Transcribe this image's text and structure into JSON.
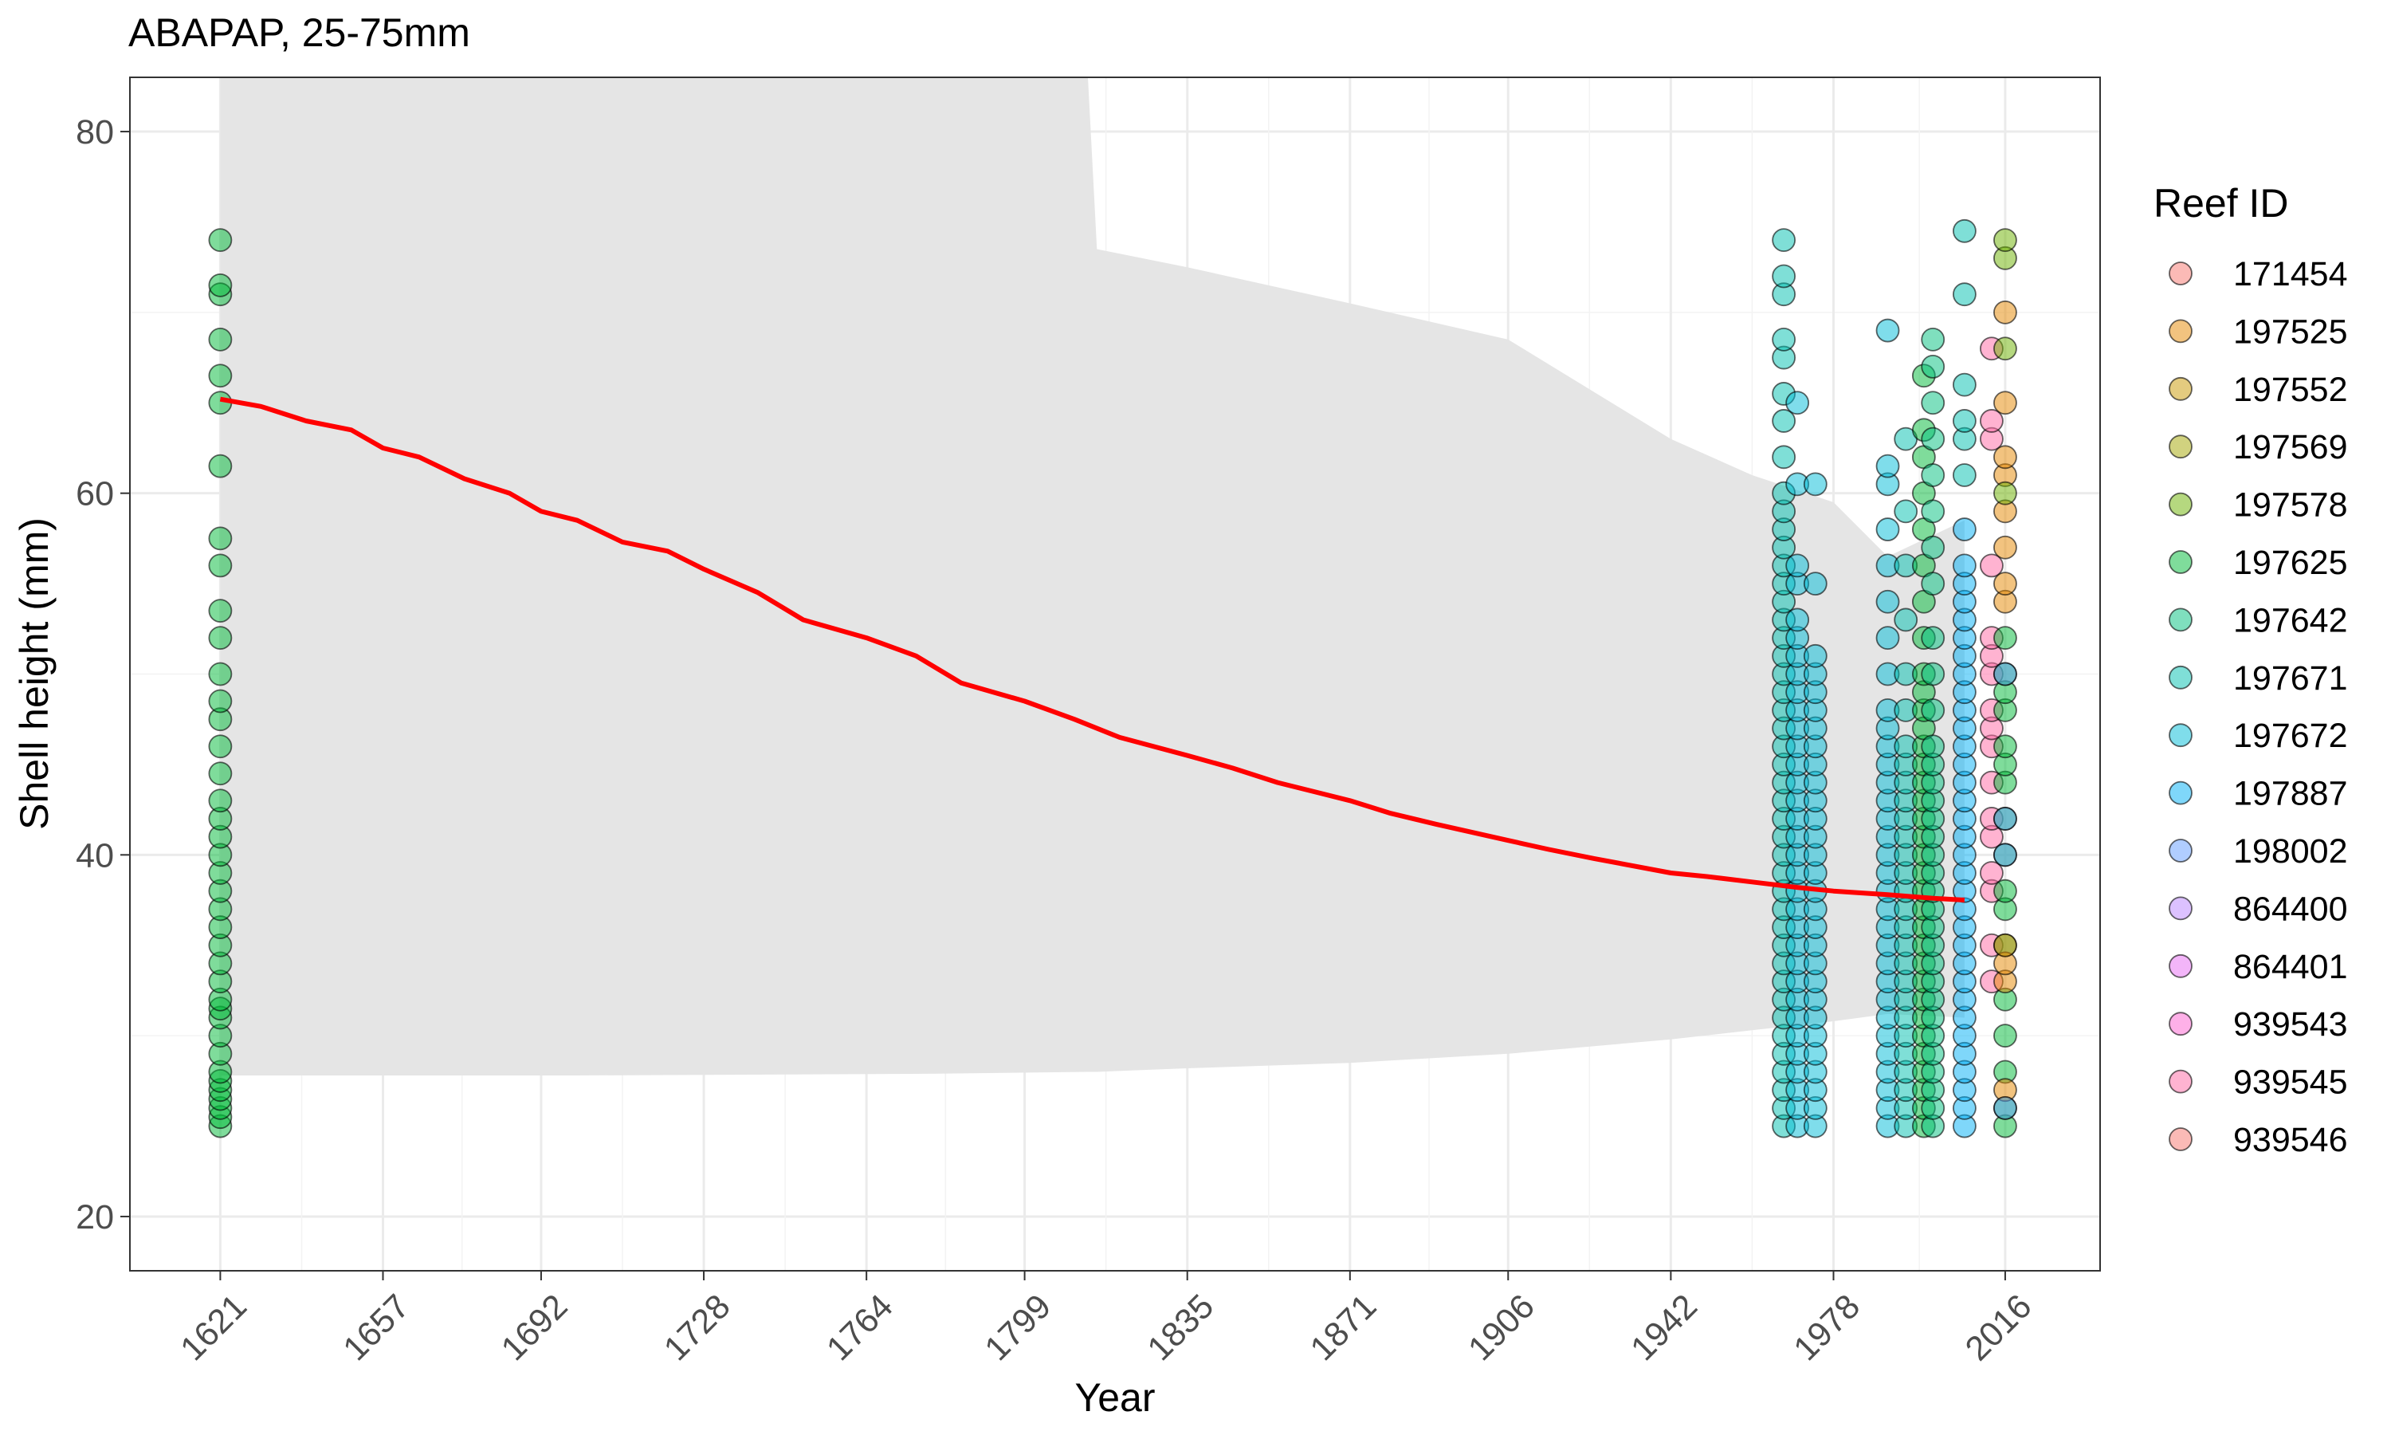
{
  "chart_data": {
    "type": "scatter",
    "title": "ABAPAP, 25-75mm",
    "xlabel": "Year",
    "ylabel": "Shell height (mm)",
    "xlim": [
      1601,
      2037
    ],
    "ylim": [
      17,
      83
    ],
    "x_ticks": [
      1621,
      1657,
      1692,
      1728,
      1764,
      1799,
      1835,
      1871,
      1906,
      1942,
      1978,
      2016
    ],
    "y_ticks": [
      20,
      40,
      60,
      80
    ],
    "grid": true,
    "legend_position": "right",
    "legend_title": "Reef ID",
    "reefs": [
      {
        "id": "171454",
        "color": "#F8766D"
      },
      {
        "id": "197525",
        "color": "#E58700"
      },
      {
        "id": "197552",
        "color": "#C99800"
      },
      {
        "id": "197569",
        "color": "#A3A500"
      },
      {
        "id": "197578",
        "color": "#6BB100"
      },
      {
        "id": "197625",
        "color": "#00BA38"
      },
      {
        "id": "197642",
        "color": "#00BF7D"
      },
      {
        "id": "197671",
        "color": "#00C0AF"
      },
      {
        "id": "197672",
        "color": "#00BCD8"
      },
      {
        "id": "197887",
        "color": "#00B0F6"
      },
      {
        "id": "198002",
        "color": "#619CFF"
      },
      {
        "id": "864400",
        "color": "#B983FF"
      },
      {
        "id": "864401",
        "color": "#E76BF3"
      },
      {
        "id": "939543",
        "color": "#FD61D1"
      },
      {
        "id": "939545",
        "color": "#FF67A4"
      },
      {
        "id": "939546",
        "color": "#F8766D"
      }
    ],
    "trend_line": {
      "color": "#ff0000",
      "x": [
        1621,
        1630,
        1640,
        1650,
        1657,
        1665,
        1675,
        1685,
        1692,
        1700,
        1710,
        1720,
        1728,
        1740,
        1750,
        1764,
        1775,
        1785,
        1799,
        1810,
        1820,
        1835,
        1845,
        1855,
        1871,
        1880,
        1890,
        1906,
        1915,
        1925,
        1942,
        1950,
        1960,
        1970,
        1978,
        1990,
        2000,
        2007
      ],
      "y": [
        65.2,
        64.8,
        64.0,
        63.5,
        62.5,
        62.0,
        60.8,
        60.0,
        59.0,
        58.5,
        57.3,
        56.8,
        55.8,
        54.5,
        53.0,
        52.0,
        51.0,
        49.5,
        48.5,
        47.5,
        46.5,
        45.5,
        44.8,
        44.0,
        43.0,
        42.3,
        41.7,
        40.8,
        40.3,
        39.8,
        39.0,
        38.8,
        38.5,
        38.2,
        38.0,
        37.8,
        37.6,
        37.5
      ]
    },
    "confidence_band": {
      "color": "#e5e5e5",
      "x": [
        1621,
        1700,
        1780,
        1813,
        1815,
        1835,
        1871,
        1906,
        1942,
        1960,
        1978,
        1990,
        2007
      ],
      "upper": [
        83,
        83,
        83,
        83,
        73.5,
        72.5,
        70.5,
        68.5,
        63.0,
        61.0,
        59.5,
        56.5,
        58.5
      ],
      "lower": [
        27.8,
        27.8,
        27.9,
        28.0,
        28.0,
        28.2,
        28.5,
        29.0,
        29.8,
        30.3,
        30.8,
        31.2,
        31.0
      ]
    },
    "point_columns": [
      {
        "x": 1621,
        "reef": "197625",
        "y": [
          25,
          25.5,
          26,
          26.5,
          27,
          27.5,
          28,
          29,
          30,
          31,
          31.5,
          32,
          33,
          34,
          35,
          36,
          37,
          38,
          39,
          40,
          41,
          42,
          43,
          44.5,
          46,
          47.5,
          48.5,
          50,
          52,
          53.5,
          56,
          57.5,
          61.5,
          65,
          66.5,
          68.5,
          71,
          71.5,
          74
        ]
      },
      {
        "x": 1967,
        "reef": "197671",
        "y": [
          25,
          26,
          27,
          28,
          29,
          30,
          31,
          32,
          33,
          34,
          35,
          36,
          37,
          38,
          39,
          40,
          41,
          42,
          43,
          44,
          45,
          46,
          47,
          48,
          49,
          50,
          51,
          52,
          53,
          54,
          55,
          56,
          57,
          58,
          59,
          60,
          62,
          64,
          65.5,
          67.5,
          68.5,
          71,
          72,
          74
        ]
      },
      {
        "x": 1970,
        "reef": "197672",
        "y": [
          25,
          26,
          27,
          28,
          29,
          30,
          31,
          32,
          33,
          34,
          35,
          36,
          37,
          38,
          39,
          40,
          41,
          42,
          43,
          44,
          45,
          46,
          47,
          48,
          49,
          50,
          51,
          52,
          53,
          55,
          56,
          60.5,
          65
        ]
      },
      {
        "x": 1974,
        "reef": "197672",
        "y": [
          25,
          26,
          27,
          28,
          29,
          30,
          31,
          32,
          33,
          34,
          35,
          36,
          37,
          38,
          39,
          40,
          41,
          42,
          43,
          44,
          45,
          46,
          47,
          48,
          49,
          50,
          51,
          55,
          60.5
        ]
      },
      {
        "x": 1990,
        "reef": "197672",
        "y": [
          25,
          26,
          27,
          28,
          29,
          30,
          31,
          32,
          33,
          34,
          35,
          36,
          37,
          38,
          39,
          40,
          41,
          42,
          43,
          44,
          45,
          46,
          47,
          48,
          50,
          52,
          54,
          56,
          58,
          60.5,
          61.5,
          69
        ]
      },
      {
        "x": 1994,
        "reef": "197671",
        "y": [
          25,
          26,
          27,
          28,
          29,
          30,
          31,
          32,
          33,
          34,
          35,
          36,
          37,
          38,
          39,
          40,
          41,
          42,
          43,
          44,
          45,
          46,
          48,
          50,
          53,
          56,
          59,
          63
        ]
      },
      {
        "x": 1998,
        "reef": "197625",
        "y": [
          25,
          26,
          27,
          28,
          29,
          30,
          31,
          32,
          33,
          34,
          35,
          36,
          37,
          38,
          39,
          40,
          41,
          42,
          43,
          44,
          45,
          46,
          47,
          48,
          49,
          50,
          52,
          54,
          56,
          58,
          60,
          62,
          63.5,
          66.5
        ]
      },
      {
        "x": 2000,
        "reef": "197642",
        "y": [
          25,
          26,
          27,
          28,
          29,
          30,
          31,
          32,
          33,
          34,
          35,
          36,
          37,
          38,
          39,
          40,
          41,
          42,
          43,
          44,
          45,
          46,
          48,
          50,
          52,
          55,
          57,
          59,
          61,
          63,
          65,
          67,
          68.5
        ]
      },
      {
        "x": 2007,
        "reef": "197887",
        "y": [
          25,
          26,
          27,
          28,
          29,
          30,
          31,
          32,
          33,
          34,
          35,
          36,
          37,
          38,
          39,
          40,
          41,
          42,
          43,
          44,
          45,
          46,
          47,
          48,
          49,
          50,
          51,
          52,
          53,
          54,
          55,
          56,
          58
        ]
      },
      {
        "x": 2007,
        "reef": "197671",
        "y": [
          61,
          63,
          64,
          66,
          71,
          74.5
        ]
      },
      {
        "x": 2013,
        "reef": "939545",
        "y": [
          33,
          35,
          38,
          39,
          41,
          42,
          44,
          46,
          47,
          48,
          50,
          51,
          52,
          56,
          63,
          64,
          68
        ]
      },
      {
        "x": 2016,
        "reef": "197625",
        "y": [
          25,
          26,
          28,
          30,
          32,
          35,
          37,
          38,
          40,
          42,
          44,
          45,
          46,
          48,
          49,
          50,
          52
        ]
      },
      {
        "x": 2016,
        "reef": "197525",
        "y": [
          27,
          33,
          34,
          35,
          54,
          55,
          57,
          59,
          61,
          62,
          65,
          70
        ]
      },
      {
        "x": 2016,
        "reef": "197578",
        "y": [
          60,
          68,
          73,
          74
        ]
      },
      {
        "x": 2016,
        "reef": "198002",
        "y": [
          26,
          40,
          42,
          50
        ]
      }
    ]
  }
}
